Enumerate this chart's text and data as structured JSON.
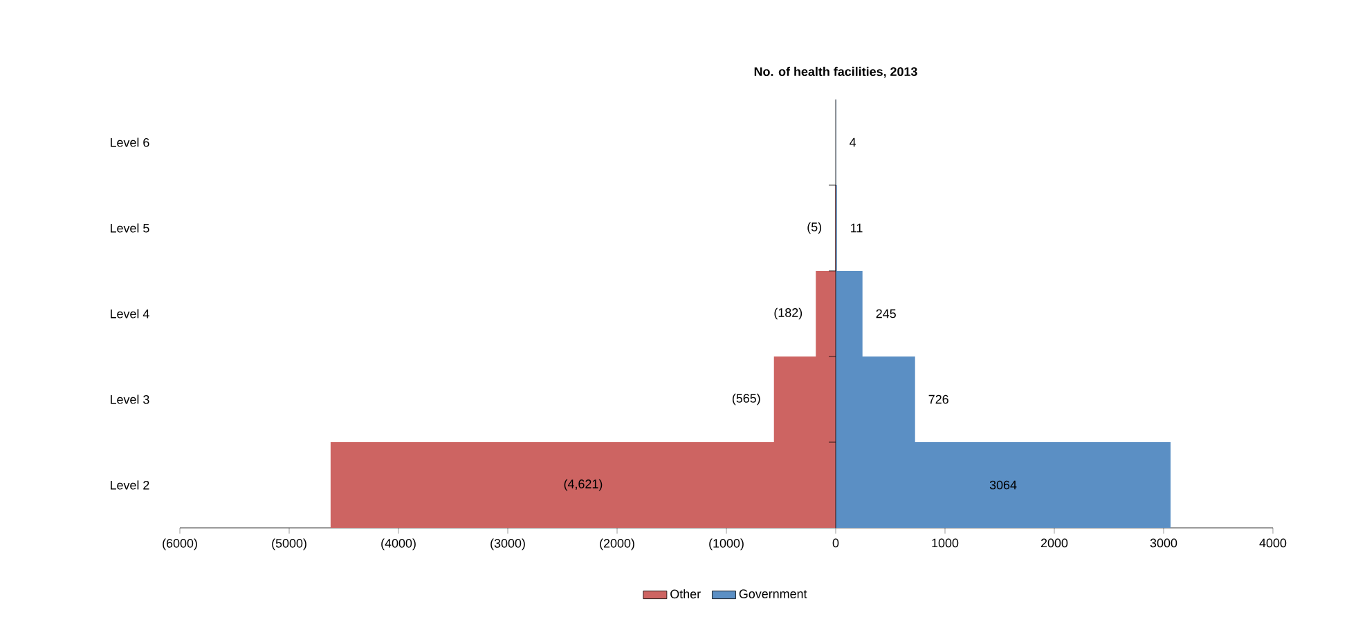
{
  "chart_data": {
    "type": "bar",
    "orientation": "horizontal",
    "title": "No. of health facilities, 2013",
    "categories": [
      "Level 6",
      "Level 5",
      "Level 4",
      "Level 3",
      "Level 2"
    ],
    "series": [
      {
        "name": "Other",
        "color": "#cd6462",
        "values": [
          null,
          -5,
          -182,
          -565,
          -4621
        ],
        "value_labels": [
          null,
          "(5)",
          "(182)",
          "(565)",
          "(4,621)"
        ]
      },
      {
        "name": "Government",
        "color": "#5b8fc4",
        "values": [
          4,
          11,
          245,
          726,
          3064
        ],
        "value_labels": [
          "4",
          "11",
          "245",
          "726",
          "3064"
        ]
      }
    ],
    "xlim": [
      -6000,
      4000
    ],
    "xticks": [
      {
        "value": -6000,
        "label": "(6000)"
      },
      {
        "value": -5000,
        "label": "(5000)"
      },
      {
        "value": -4000,
        "label": "(4000)"
      },
      {
        "value": -3000,
        "label": "(3000)"
      },
      {
        "value": -2000,
        "label": "(2000)"
      },
      {
        "value": -1000,
        "label": "(1000)"
      },
      0,
      1000,
      2000,
      3000,
      4000
    ],
    "stacked": true,
    "legend": "bottom"
  }
}
